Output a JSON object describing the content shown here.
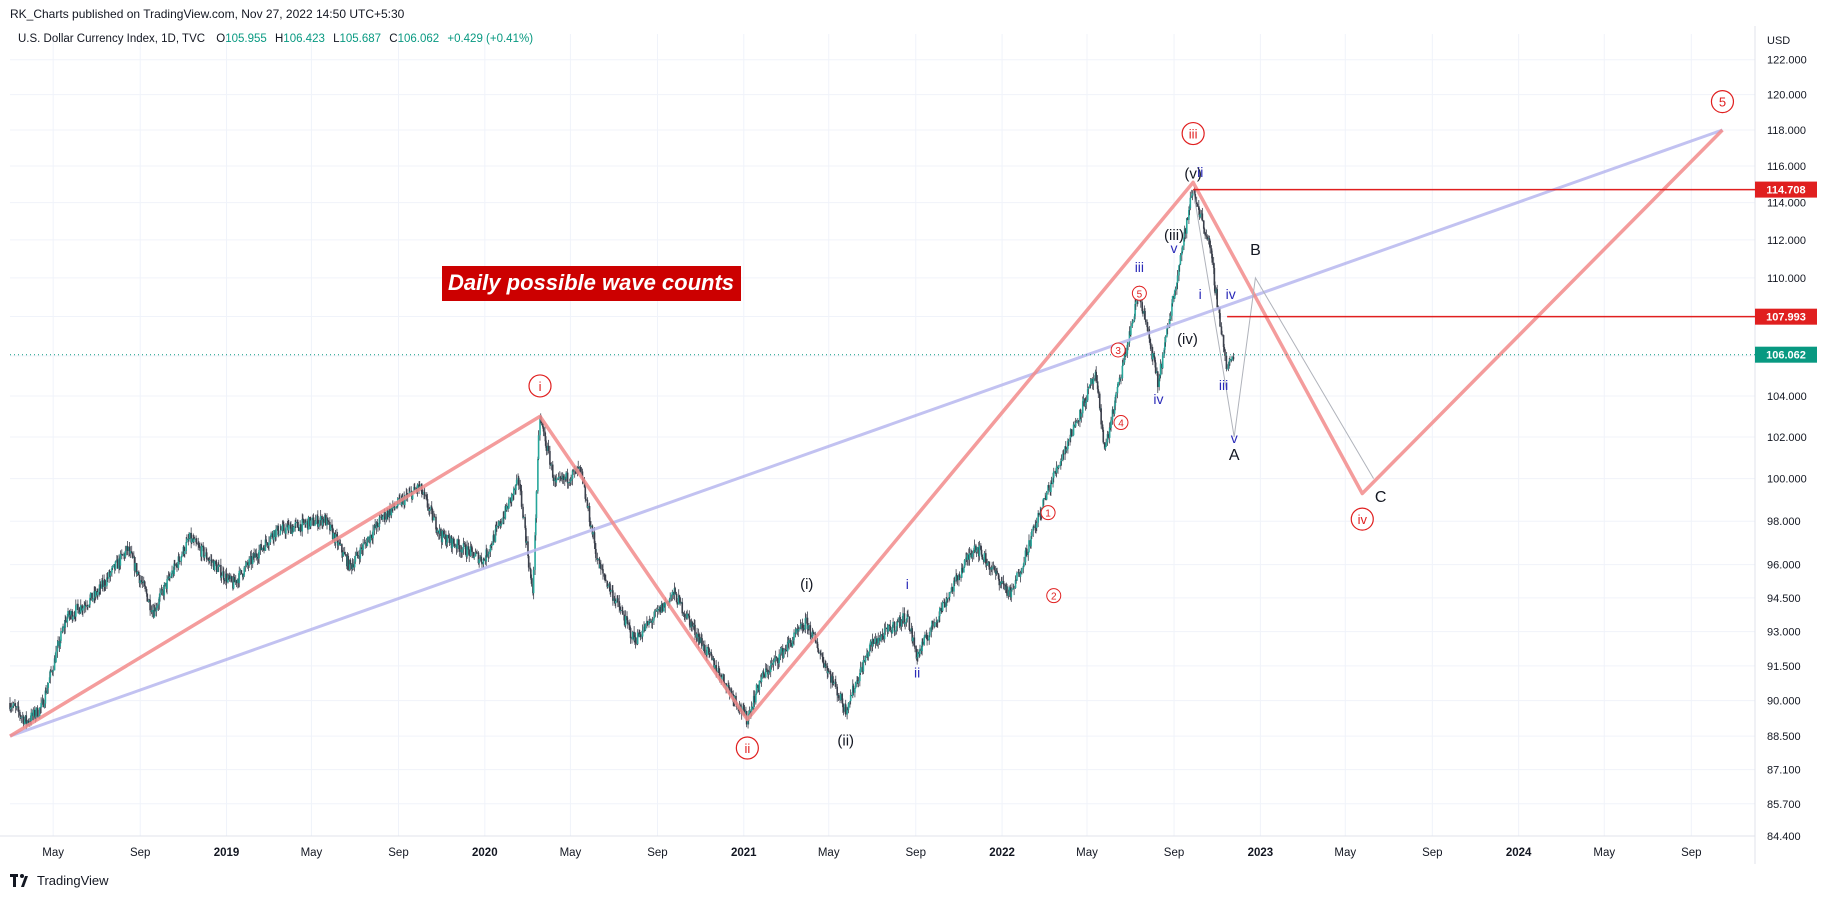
{
  "publish": {
    "text": "RK_Charts published on TradingView.com, Nov 27, 2022 14:50 UTC+5:30"
  },
  "legend": {
    "symbol": "U.S. Dollar Currency Index, 1D, TVC",
    "o_label": "O",
    "o_value": "105.955",
    "h_label": "H",
    "h_value": "106.423",
    "l_label": "L",
    "l_value": "105.687",
    "c_label": "C",
    "c_value": "106.062",
    "change": "+0.429 (+0.41%)"
  },
  "footer": {
    "brand": "TradingView",
    "logo_icon": "tradingview-logo-icon"
  },
  "colors": {
    "up": "#26a69a",
    "down": "#ef5350",
    "candle": "#3a3f4b",
    "wave_line": "#f28b8b",
    "trend_line": "#b8b8ef",
    "red_level": "#e01f1f",
    "last_price": "#089981",
    "label_red": "#e01f1f",
    "label_blue": "#2a2ab8",
    "label_black": "#131722"
  },
  "annotation_box": {
    "text": "Daily possible wave counts",
    "bg": "#cc0000"
  },
  "chart_data": {
    "type": "candlestick",
    "title": "U.S. Dollar Currency Index, 1D, TVC",
    "currency": "USD",
    "x_range": [
      "2018-03-01",
      "2024-11-30"
    ],
    "y_range": [
      84.4,
      123.5
    ],
    "y_scale": "log",
    "y_ticks": [
      "122.000",
      "120.000",
      "118.000",
      "116.000",
      "114.000",
      "112.000",
      "110.000",
      "108.000",
      "106.000",
      "104.000",
      "102.000",
      "100.000",
      "98.000",
      "96.000",
      "94.500",
      "93.000",
      "91.500",
      "90.000",
      "88.500",
      "87.100",
      "85.700",
      "84.400"
    ],
    "x_ticks": [
      {
        "label": "May",
        "date": "2018-05-01"
      },
      {
        "label": "Sep",
        "date": "2018-09-01"
      },
      {
        "label": "2019",
        "date": "2019-01-01"
      },
      {
        "label": "May",
        "date": "2019-05-01"
      },
      {
        "label": "Sep",
        "date": "2019-09-01"
      },
      {
        "label": "2020",
        "date": "2020-01-01"
      },
      {
        "label": "May",
        "date": "2020-05-01"
      },
      {
        "label": "Sep",
        "date": "2020-09-01"
      },
      {
        "label": "2021",
        "date": "2021-01-01"
      },
      {
        "label": "May",
        "date": "2021-05-01"
      },
      {
        "label": "Sep",
        "date": "2021-09-01"
      },
      {
        "label": "2022",
        "date": "2022-01-01"
      },
      {
        "label": "May",
        "date": "2022-05-01"
      },
      {
        "label": "Sep",
        "date": "2022-09-01"
      },
      {
        "label": "2023",
        "date": "2023-01-01"
      },
      {
        "label": "May",
        "date": "2023-05-01"
      },
      {
        "label": "Sep",
        "date": "2023-09-01"
      },
      {
        "label": "2024",
        "date": "2024-01-01"
      },
      {
        "label": "May",
        "date": "2024-05-01"
      },
      {
        "label": "Sep",
        "date": "2024-09-01"
      }
    ],
    "price_path": [
      {
        "date": "2018-03-01",
        "price": 89.9
      },
      {
        "date": "2018-03-25",
        "price": 89.1
      },
      {
        "date": "2018-04-15",
        "price": 89.7
      },
      {
        "date": "2018-05-20",
        "price": 93.6
      },
      {
        "date": "2018-06-30",
        "price": 94.6
      },
      {
        "date": "2018-08-15",
        "price": 96.7
      },
      {
        "date": "2018-09-20",
        "price": 93.9
      },
      {
        "date": "2018-11-10",
        "price": 97.2
      },
      {
        "date": "2019-01-10",
        "price": 95.1
      },
      {
        "date": "2019-03-10",
        "price": 97.5
      },
      {
        "date": "2019-05-20",
        "price": 98.1
      },
      {
        "date": "2019-06-25",
        "price": 95.9
      },
      {
        "date": "2019-08-10",
        "price": 98.2
      },
      {
        "date": "2019-10-01",
        "price": 99.6
      },
      {
        "date": "2019-11-01",
        "price": 97.3
      },
      {
        "date": "2019-12-31",
        "price": 96.2
      },
      {
        "date": "2020-02-19",
        "price": 99.9
      },
      {
        "date": "2020-03-09",
        "price": 94.6
      },
      {
        "date": "2020-03-19",
        "price": 103.0
      },
      {
        "date": "2020-04-10",
        "price": 99.7
      },
      {
        "date": "2020-05-15",
        "price": 100.4
      },
      {
        "date": "2020-06-10",
        "price": 96.0
      },
      {
        "date": "2020-07-31",
        "price": 92.6
      },
      {
        "date": "2020-09-25",
        "price": 94.7
      },
      {
        "date": "2020-11-10",
        "price": 92.1
      },
      {
        "date": "2021-01-06",
        "price": 89.2
      },
      {
        "date": "2021-01-25",
        "price": 90.9
      },
      {
        "date": "2021-03-31",
        "price": 93.4
      },
      {
        "date": "2021-05-25",
        "price": 89.6
      },
      {
        "date": "2021-06-30",
        "price": 92.4
      },
      {
        "date": "2021-08-20",
        "price": 93.7
      },
      {
        "date": "2021-09-03",
        "price": 91.9
      },
      {
        "date": "2021-11-24",
        "price": 96.9
      },
      {
        "date": "2022-01-14",
        "price": 94.6
      },
      {
        "date": "2022-03-07",
        "price": 99.4
      },
      {
        "date": "2022-05-13",
        "price": 105.0
      },
      {
        "date": "2022-05-27",
        "price": 101.4
      },
      {
        "date": "2022-07-14",
        "price": 109.3
      },
      {
        "date": "2022-08-10",
        "price": 104.6
      },
      {
        "date": "2022-09-28",
        "price": 114.7
      },
      {
        "date": "2022-10-21",
        "price": 111.8
      },
      {
        "date": "2022-11-15",
        "price": 105.3
      },
      {
        "date": "2022-11-25",
        "price": 106.062
      }
    ],
    "last_price": 106.062,
    "wave_projection": [
      {
        "date": "2018-03-01",
        "price": 88.5
      },
      {
        "date": "2020-03-19",
        "price": 103.0
      },
      {
        "date": "2021-01-06",
        "price": 89.2
      },
      {
        "date": "2022-09-28",
        "price": 115.1
      },
      {
        "date": "2023-05-25",
        "price": 99.3
      },
      {
        "date": "2024-10-15",
        "price": 118.0
      }
    ],
    "trend_line": [
      {
        "date": "2018-03-01",
        "price": 88.5
      },
      {
        "date": "2024-10-15",
        "price": 118.0
      }
    ],
    "abc_path": [
      {
        "date": "2022-09-28",
        "price": 114.7
      },
      {
        "date": "2022-11-25",
        "price": 102.0
      },
      {
        "date": "2022-12-25",
        "price": 110.0
      },
      {
        "date": "2023-06-10",
        "price": 100.0
      }
    ],
    "horizontal_levels": [
      {
        "price": 114.708,
        "label": "114.708",
        "start": "2022-09-28"
      },
      {
        "price": 107.993,
        "label": "107.993",
        "start": "2022-11-15"
      }
    ],
    "wave_labels": [
      {
        "text": "i",
        "style": "circle-red",
        "date": "2020-03-19",
        "price": 104.5
      },
      {
        "text": "ii",
        "style": "circle-red",
        "date": "2021-01-06",
        "price": 88.0
      },
      {
        "text": "iii",
        "style": "circle-red",
        "date": "2022-09-28",
        "price": 117.8
      },
      {
        "text": "iv",
        "style": "circle-red",
        "date": "2023-05-25",
        "price": 98.1
      },
      {
        "text": "5",
        "style": "circle-red",
        "date": "2024-10-15",
        "price": 119.6
      },
      {
        "text": "(i)",
        "style": "black",
        "date": "2021-03-31",
        "price": 94.9
      },
      {
        "text": "(ii)",
        "style": "black",
        "date": "2021-05-25",
        "price": 88.1
      },
      {
        "text": "(iii)",
        "style": "black",
        "date": "2022-09-01",
        "price": 112.0
      },
      {
        "text": "(iv)",
        "style": "black",
        "date": "2022-09-20",
        "price": 106.6
      },
      {
        "text": "(v)",
        "style": "black",
        "date": "2022-09-28",
        "price": 115.3
      },
      {
        "text": "i",
        "style": "blue",
        "date": "2021-08-20",
        "price": 94.9
      },
      {
        "text": "ii",
        "style": "blue",
        "date": "2021-09-03",
        "price": 91.0
      },
      {
        "text": "iii",
        "style": "blue",
        "date": "2022-07-14",
        "price": 110.3
      },
      {
        "text": "iv",
        "style": "blue",
        "date": "2022-08-10",
        "price": 103.6
      },
      {
        "text": "v",
        "style": "blue",
        "date": "2022-09-01",
        "price": 111.3
      },
      {
        "text": "ii",
        "style": "blue",
        "date": "2022-10-08",
        "price": 115.4
      },
      {
        "text": "i",
        "style": "blue",
        "date": "2022-10-08",
        "price": 108.9
      },
      {
        "text": "iv",
        "style": "blue",
        "date": "2022-11-20",
        "price": 108.9
      },
      {
        "text": "iii",
        "style": "blue",
        "date": "2022-11-10",
        "price": 104.3
      },
      {
        "text": "v",
        "style": "blue",
        "date": "2022-11-25",
        "price": 101.7
      },
      {
        "text": "1",
        "style": "circle-sm-red",
        "date": "2022-03-07",
        "price": 98.4
      },
      {
        "text": "2",
        "style": "circle-sm-red",
        "date": "2022-03-15",
        "price": 94.6
      },
      {
        "text": "3",
        "style": "circle-sm-red",
        "date": "2022-06-14",
        "price": 106.3
      },
      {
        "text": "4",
        "style": "circle-sm-red",
        "date": "2022-06-18",
        "price": 102.7
      },
      {
        "text": "5",
        "style": "circle-sm-red",
        "date": "2022-07-14",
        "price": 109.2
      },
      {
        "text": "A",
        "style": "abc",
        "date": "2022-11-25",
        "price": 100.9
      },
      {
        "text": "B",
        "style": "abc",
        "date": "2022-12-25",
        "price": 111.2
      },
      {
        "text": "C",
        "style": "abc",
        "date": "2023-06-20",
        "price": 98.9
      }
    ]
  }
}
